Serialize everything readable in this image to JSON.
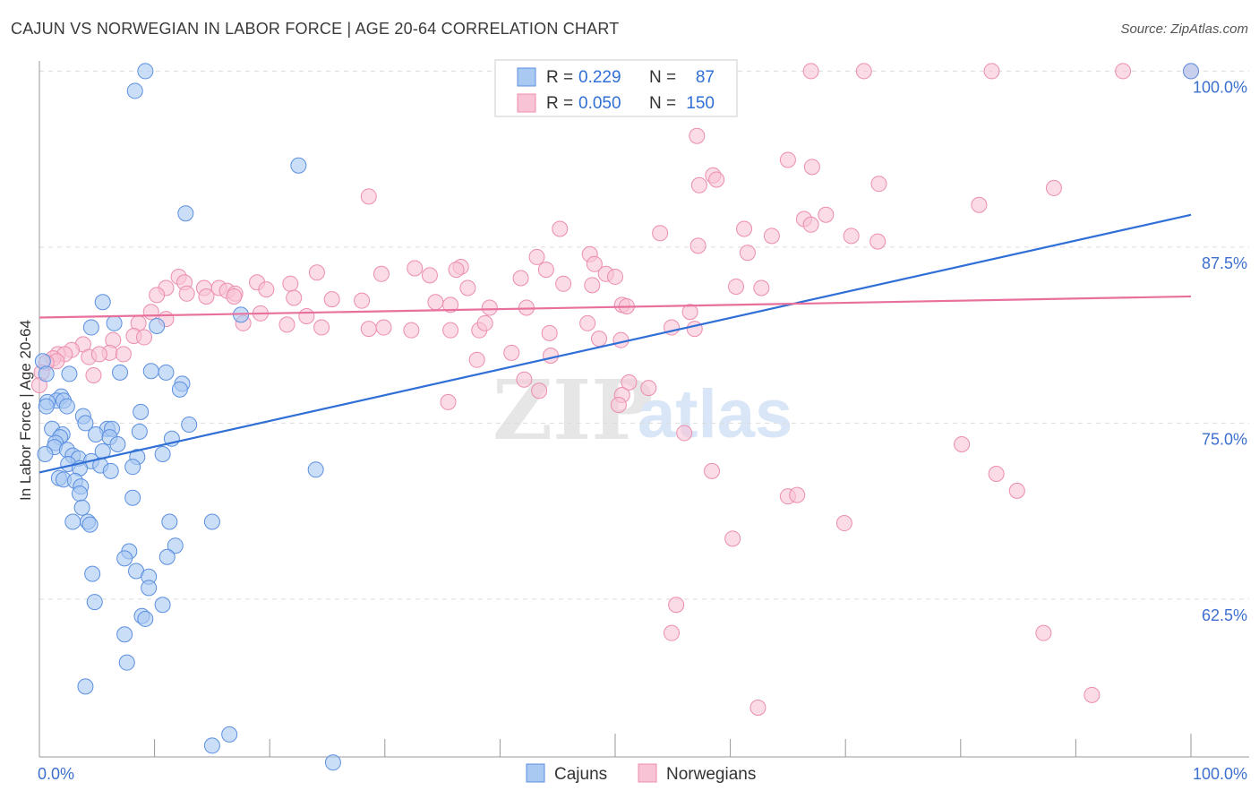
{
  "title": "CAJUN VS NORWEGIAN IN LABOR FORCE | AGE 20-64 CORRELATION CHART",
  "source": "Source: ZipAtlas.com",
  "watermark": {
    "zip": "ZIP",
    "atlas": "atlas"
  },
  "colors": {
    "cajun_fill": "#a9c8f2",
    "cajun_stroke": "#5b8fe0",
    "cajun_line": "#2f6fd6",
    "norwegian_fill": "#f8c3d5",
    "norwegian_stroke": "#ec8db0",
    "norwegian_line": "#e8709c",
    "tick_label": "#3d6fcf",
    "grid": "#dcdcdc"
  },
  "legend": {
    "r_label": "R =",
    "n_label": "N =",
    "rows": [
      {
        "r": "0.229",
        "n": "87"
      },
      {
        "r": "0.050",
        "n": "150"
      }
    ]
  },
  "chart_data": {
    "type": "scatter",
    "title": "CAJUN VS NORWEGIAN IN LABOR FORCE | AGE 20-64 CORRELATION CHART",
    "xlabel": "",
    "ylabel": "In Labor Force | Age 20-64",
    "xlim": [
      0,
      100
    ],
    "ylim": [
      51.3,
      100.6
    ],
    "x_tick_labels": [
      "0.0%",
      "100.0%"
    ],
    "y_ticks": [
      62.5,
      75.0,
      87.5,
      100.0
    ],
    "y_tick_labels": [
      "62.5%",
      "75.0%",
      "87.5%",
      "100.0%"
    ],
    "grid": "horizontal dashed",
    "legend_position": "top-center",
    "series": [
      {
        "name": "Cajuns",
        "r": 0.229,
        "n": 87,
        "trend": {
          "x": [
            0,
            100
          ],
          "y": [
            71.5,
            89.8
          ]
        },
        "points": [
          [
            9.2,
            100.0
          ],
          [
            8.3,
            98.6
          ],
          [
            22.5,
            93.3
          ],
          [
            12.7,
            89.9
          ],
          [
            5.5,
            83.6
          ],
          [
            17.5,
            82.7
          ],
          [
            6.5,
            82.1
          ],
          [
            10.2,
            81.9
          ],
          [
            4.5,
            81.8
          ],
          [
            0.3,
            79.4
          ],
          [
            0.6,
            78.5
          ],
          [
            2.6,
            78.5
          ],
          [
            7.0,
            78.6
          ],
          [
            9.7,
            78.7
          ],
          [
            11.0,
            78.6
          ],
          [
            12.4,
            77.8
          ],
          [
            12.2,
            77.4
          ],
          [
            1.9,
            76.9
          ],
          [
            1.5,
            76.6
          ],
          [
            2.1,
            76.6
          ],
          [
            0.7,
            76.5
          ],
          [
            0.6,
            76.2
          ],
          [
            2.4,
            76.2
          ],
          [
            8.8,
            75.8
          ],
          [
            3.8,
            75.5
          ],
          [
            4.0,
            75.0
          ],
          [
            13.0,
            74.9
          ],
          [
            5.9,
            74.6
          ],
          [
            6.3,
            74.6
          ],
          [
            8.7,
            74.4
          ],
          [
            1.1,
            74.6
          ],
          [
            2.0,
            74.2
          ],
          [
            4.9,
            74.2
          ],
          [
            1.8,
            74.0
          ],
          [
            6.1,
            74.0
          ],
          [
            11.5,
            73.9
          ],
          [
            1.4,
            73.6
          ],
          [
            6.8,
            73.5
          ],
          [
            1.3,
            73.3
          ],
          [
            2.4,
            73.1
          ],
          [
            5.5,
            73.0
          ],
          [
            0.5,
            72.8
          ],
          [
            2.9,
            72.7
          ],
          [
            8.5,
            72.6
          ],
          [
            10.7,
            72.8
          ],
          [
            3.4,
            72.5
          ],
          [
            4.5,
            72.3
          ],
          [
            2.5,
            72.1
          ],
          [
            5.3,
            72.0
          ],
          [
            3.5,
            71.8
          ],
          [
            8.1,
            71.9
          ],
          [
            6.2,
            71.6
          ],
          [
            24.0,
            71.7
          ],
          [
            1.7,
            71.1
          ],
          [
            2.1,
            71.0
          ],
          [
            3.1,
            70.9
          ],
          [
            3.6,
            70.5
          ],
          [
            3.5,
            70.0
          ],
          [
            8.1,
            69.7
          ],
          [
            3.7,
            69.0
          ],
          [
            2.9,
            68.0
          ],
          [
            4.2,
            68.0
          ],
          [
            4.4,
            67.8
          ],
          [
            11.3,
            68.0
          ],
          [
            15.0,
            68.0
          ],
          [
            11.8,
            66.3
          ],
          [
            7.8,
            65.9
          ],
          [
            7.4,
            65.4
          ],
          [
            11.1,
            65.5
          ],
          [
            8.4,
            64.5
          ],
          [
            4.6,
            64.3
          ],
          [
            9.5,
            64.1
          ],
          [
            9.5,
            63.3
          ],
          [
            4.8,
            62.3
          ],
          [
            10.7,
            62.1
          ],
          [
            8.9,
            61.3
          ],
          [
            9.2,
            61.1
          ],
          [
            7.4,
            60.0
          ],
          [
            7.6,
            58.0
          ],
          [
            4.0,
            56.3
          ],
          [
            16.5,
            52.9
          ],
          [
            15.0,
            52.1
          ],
          [
            25.5,
            50.9
          ],
          [
            100.0,
            100.0
          ]
        ]
      },
      {
        "name": "Norwegians",
        "r": 0.05,
        "n": 150,
        "trend": {
          "x": [
            0,
            100
          ],
          "y": [
            82.5,
            84.0
          ]
        },
        "points": [
          [
            67.0,
            100.0
          ],
          [
            71.6,
            100.0
          ],
          [
            82.7,
            100.0
          ],
          [
            94.1,
            100.0
          ],
          [
            100.0,
            100.0
          ],
          [
            57.1,
            95.4
          ],
          [
            65.0,
            93.7
          ],
          [
            67.1,
            93.2
          ],
          [
            58.5,
            92.6
          ],
          [
            58.8,
            92.3
          ],
          [
            57.3,
            91.9
          ],
          [
            72.9,
            92.0
          ],
          [
            88.1,
            91.7
          ],
          [
            28.6,
            91.1
          ],
          [
            81.6,
            90.5
          ],
          [
            66.4,
            89.5
          ],
          [
            67.0,
            89.1
          ],
          [
            68.3,
            89.8
          ],
          [
            45.2,
            88.8
          ],
          [
            53.9,
            88.5
          ],
          [
            61.2,
            88.8
          ],
          [
            63.6,
            88.3
          ],
          [
            70.5,
            88.3
          ],
          [
            47.8,
            87.0
          ],
          [
            43.2,
            86.8
          ],
          [
            57.2,
            87.6
          ],
          [
            72.8,
            87.9
          ],
          [
            61.5,
            87.1
          ],
          [
            36.6,
            86.1
          ],
          [
            48.2,
            86.3
          ],
          [
            32.6,
            86.0
          ],
          [
            24.1,
            85.7
          ],
          [
            36.2,
            85.9
          ],
          [
            44.0,
            85.9
          ],
          [
            49.2,
            85.6
          ],
          [
            29.7,
            85.6
          ],
          [
            33.9,
            85.5
          ],
          [
            50.0,
            85.4
          ],
          [
            12.1,
            85.4
          ],
          [
            12.6,
            85.0
          ],
          [
            18.9,
            85.0
          ],
          [
            21.8,
            84.9
          ],
          [
            15.6,
            84.6
          ],
          [
            16.3,
            84.4
          ],
          [
            14.3,
            84.6
          ],
          [
            11.0,
            84.6
          ],
          [
            19.7,
            84.5
          ],
          [
            37.2,
            84.6
          ],
          [
            60.5,
            84.7
          ],
          [
            62.7,
            84.6
          ],
          [
            17.0,
            84.2
          ],
          [
            12.8,
            84.2
          ],
          [
            10.2,
            84.1
          ],
          [
            14.5,
            84.0
          ],
          [
            16.9,
            84.0
          ],
          [
            22.1,
            83.9
          ],
          [
            25.4,
            83.8
          ],
          [
            28.0,
            83.7
          ],
          [
            34.4,
            83.6
          ],
          [
            35.7,
            83.4
          ],
          [
            39.1,
            83.2
          ],
          [
            42.3,
            83.2
          ],
          [
            50.6,
            83.4
          ],
          [
            51.0,
            83.3
          ],
          [
            56.5,
            82.9
          ],
          [
            48.0,
            84.8
          ],
          [
            45.5,
            84.9
          ],
          [
            41.8,
            85.3
          ],
          [
            9.7,
            82.9
          ],
          [
            11.0,
            82.4
          ],
          [
            8.6,
            82.1
          ],
          [
            17.7,
            82.1
          ],
          [
            19.2,
            82.8
          ],
          [
            21.5,
            82.0
          ],
          [
            23.2,
            82.6
          ],
          [
            24.5,
            81.8
          ],
          [
            28.6,
            81.7
          ],
          [
            29.9,
            81.8
          ],
          [
            32.3,
            81.6
          ],
          [
            38.2,
            81.6
          ],
          [
            38.7,
            82.1
          ],
          [
            35.7,
            81.6
          ],
          [
            44.3,
            81.4
          ],
          [
            48.6,
            81.0
          ],
          [
            50.5,
            80.9
          ],
          [
            54.9,
            81.8
          ],
          [
            47.6,
            82.1
          ],
          [
            56.9,
            81.7
          ],
          [
            8.2,
            81.2
          ],
          [
            9.1,
            81.1
          ],
          [
            6.4,
            80.9
          ],
          [
            3.8,
            80.6
          ],
          [
            2.8,
            80.2
          ],
          [
            1.6,
            79.9
          ],
          [
            2.2,
            79.9
          ],
          [
            6.1,
            80.0
          ],
          [
            7.3,
            79.9
          ],
          [
            4.3,
            79.7
          ],
          [
            5.2,
            79.9
          ],
          [
            1.2,
            79.6
          ],
          [
            1.5,
            79.4
          ],
          [
            0.6,
            79.3
          ],
          [
            0.2,
            78.6
          ],
          [
            4.7,
            78.4
          ],
          [
            38.0,
            79.5
          ],
          [
            41.0,
            80.0
          ],
          [
            44.4,
            79.8
          ],
          [
            42.1,
            78.1
          ],
          [
            43.4,
            77.3
          ],
          [
            52.9,
            77.5
          ],
          [
            50.6,
            77.0
          ],
          [
            51.2,
            77.9
          ],
          [
            50.3,
            76.3
          ],
          [
            35.5,
            76.5
          ],
          [
            56.0,
            74.3
          ],
          [
            80.1,
            73.5
          ],
          [
            83.1,
            71.4
          ],
          [
            58.4,
            71.6
          ],
          [
            65.0,
            69.8
          ],
          [
            65.8,
            69.9
          ],
          [
            84.9,
            70.2
          ],
          [
            69.9,
            67.9
          ],
          [
            60.2,
            66.8
          ],
          [
            55.3,
            62.1
          ],
          [
            54.9,
            60.1
          ],
          [
            87.2,
            60.1
          ],
          [
            62.4,
            54.8
          ],
          [
            91.4,
            55.7
          ],
          [
            0.0,
            77.7
          ]
        ]
      }
    ]
  },
  "bottom_legend": [
    {
      "label": "Cajuns"
    },
    {
      "label": "Norwegians"
    }
  ]
}
